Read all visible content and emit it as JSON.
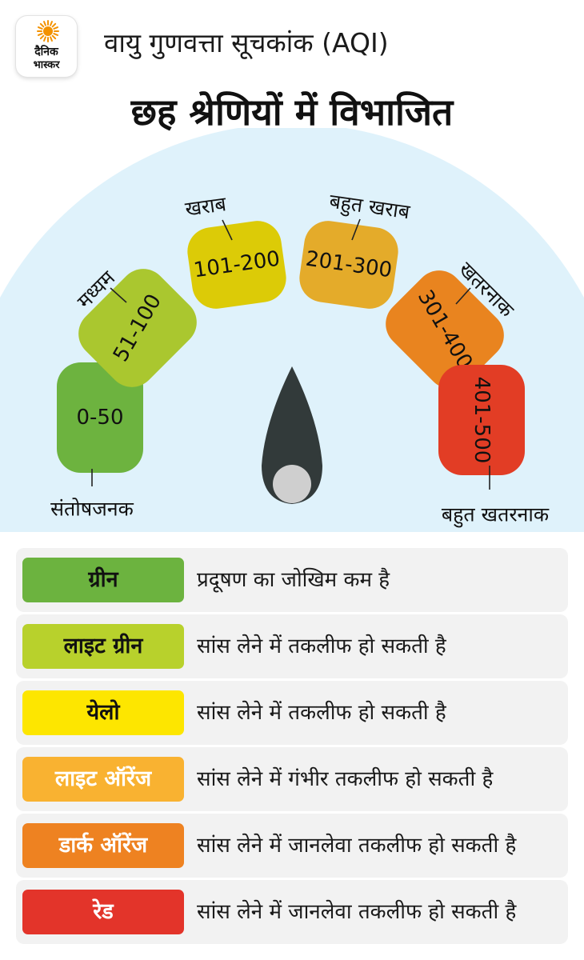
{
  "logo": {
    "line1": "दैनिक",
    "line2": "भास्कर",
    "sun_color": "#f39200"
  },
  "header": {
    "title": "वायु गुणवत्ता सूचकांक (AQI)",
    "subtitle": "छह श्रेणियों में विभाजित"
  },
  "gauge": {
    "ring_color": "#dff2fb",
    "needle_color": "#323a3a",
    "hub_color": "#cfcfcf",
    "segments": [
      {
        "range": "0-50",
        "label": "संतोषजनक",
        "color": "#6db33f"
      },
      {
        "range": "51-100",
        "label": "मध्यम",
        "color": "#aac72f"
      },
      {
        "range": "101-200",
        "label": "खराब",
        "color": "#dccb07"
      },
      {
        "range": "201-300",
        "label": "बहुत खराब",
        "color": "#e4ab2a"
      },
      {
        "range": "301-400",
        "label": "खतरनाक",
        "color": "#e9841f"
      },
      {
        "range": "401-500",
        "label": "बहुत खतरनाक",
        "color": "#e23d25"
      }
    ]
  },
  "legend": [
    {
      "name": "ग्रीन",
      "desc": "प्रदूषण का जोखिम कम है",
      "color": "#6cb33f",
      "text_color": "#111111"
    },
    {
      "name": "लाइट ग्रीन",
      "desc": "सांस लेने में तकलीफ हो सकती है",
      "color": "#b8d12c",
      "text_color": "#111111"
    },
    {
      "name": "येलो",
      "desc": "सांस लेने में तकलीफ हो सकती है",
      "color": "#fde600",
      "text_color": "#111111"
    },
    {
      "name": "लाइट ऑरेंज",
      "desc": "सांस लेने में गंभीर तकलीफ हो सकती है",
      "color": "#f9b231",
      "text_color": "#ffffff"
    },
    {
      "name": "डार्क ऑरेंज",
      "desc": "सांस लेने में जानलेवा तकलीफ हो सकती है",
      "color": "#ee8221",
      "text_color": "#ffffff"
    },
    {
      "name": "रेड",
      "desc": "सांस लेने में जानलेवा तकलीफ हो सकती है",
      "color": "#e3342a",
      "text_color": "#ffffff"
    }
  ]
}
